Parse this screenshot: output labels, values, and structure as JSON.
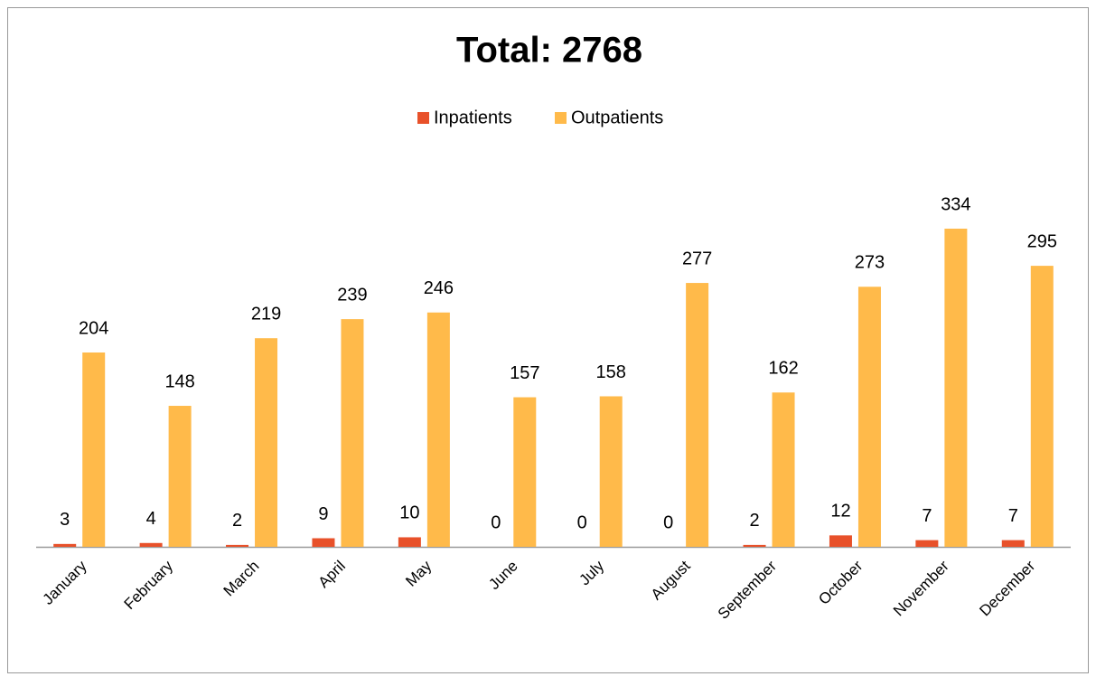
{
  "chart_data": {
    "type": "bar",
    "title": "Total: 2768",
    "categories": [
      "January",
      "February",
      "March",
      "April",
      "May",
      "June",
      "July",
      "August",
      "September",
      "October",
      "November",
      "December"
    ],
    "series": [
      {
        "name": "Inpatients",
        "color": "#e8512a",
        "values": [
          3,
          4,
          2,
          9,
          10,
          0,
          0,
          0,
          2,
          12,
          7,
          7
        ]
      },
      {
        "name": "Outpatients",
        "color": "#ffba4a",
        "values": [
          204,
          148,
          219,
          239,
          246,
          157,
          158,
          277,
          162,
          273,
          334,
          295
        ]
      }
    ],
    "legend": "top"
  }
}
